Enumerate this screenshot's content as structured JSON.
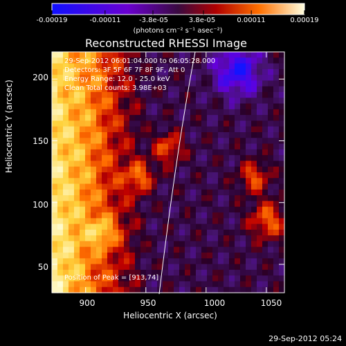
{
  "chart_data": {
    "type": "heatmap",
    "title": "Reconstructed RHESSI Image",
    "xlabel": "Heliocentric X (arcsec)",
    "ylabel": "Heliocentric Y (arcsec)",
    "xlim": [
      872,
      1065
    ],
    "ylim": [
      27,
      222
    ],
    "xticks": [
      "900",
      "950",
      "1000",
      "1050"
    ],
    "xtick_values": [
      900,
      950,
      1000,
      1050
    ],
    "yticks": [
      "200",
      "150",
      "100",
      "50"
    ],
    "ytick_values": [
      200,
      150,
      100,
      50
    ],
    "colorbar": {
      "ticks": [
        "-0.00019",
        "-0.00011",
        "-3.8e-05",
        "3.8e-05",
        "0.00011",
        "0.00019"
      ],
      "tick_values": [
        -0.00019,
        -0.00011,
        -3.8e-05,
        3.8e-05,
        0.00011,
        0.00019
      ],
      "range": [
        -0.00019,
        0.00019
      ],
      "units": "(photons cm⁻² s⁻¹ asec⁻²)"
    },
    "annotations": {
      "time": "29-Sep-2012 06:01:04.000 to 06:05:28.000",
      "detectors": "Detectors: 3F 5F 6F 7F 8F 9F, Att 0",
      "energy": "Energy Range: 12.0 - 25.0 keV",
      "clean": "Clean      Total counts: 3.98E+03",
      "peak": "Position of Peak = [913,74]"
    },
    "footer": "29-Sep-2012 05:24"
  }
}
